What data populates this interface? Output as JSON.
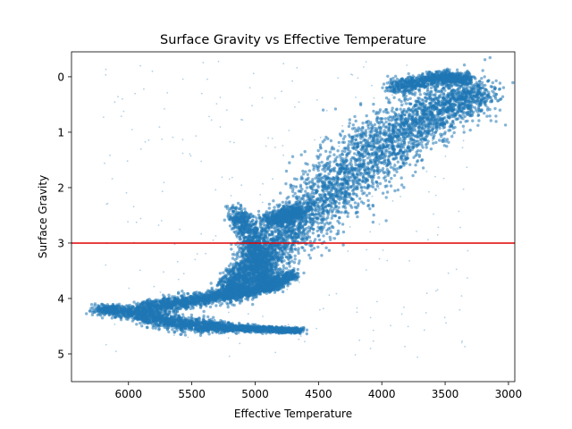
{
  "chart_data": {
    "type": "scatter",
    "title": "Surface Gravity vs Effective Temperature",
    "xlabel": "Effective Temperature",
    "ylabel": "Surface Gravity",
    "xlim": [
      6450,
      2950
    ],
    "ylim": [
      5.5,
      -0.45
    ],
    "x_inverted": true,
    "y_inverted": true,
    "xticks": [
      {
        "value": 6000,
        "label": "6000"
      },
      {
        "value": 5500,
        "label": "5500"
      },
      {
        "value": 5000,
        "label": "5000"
      },
      {
        "value": 4500,
        "label": "4500"
      },
      {
        "value": 4000,
        "label": "4000"
      },
      {
        "value": 3500,
        "label": "3500"
      },
      {
        "value": 3000,
        "label": "3000"
      }
    ],
    "yticks": [
      {
        "value": 0,
        "label": "0"
      },
      {
        "value": 1,
        "label": "1"
      },
      {
        "value": 2,
        "label": "2"
      },
      {
        "value": 3,
        "label": "3"
      },
      {
        "value": 4,
        "label": "4"
      },
      {
        "value": 5,
        "label": "5"
      }
    ],
    "reference_line": {
      "orientation": "horizontal",
      "y": 3.0,
      "color": "#e00000"
    },
    "point_color": "#1f77b4",
    "grid": false,
    "density_regions": [
      {
        "name": "giant branch",
        "x_range": [
          5250,
          3250
        ],
        "y_range": [
          4.0,
          -0.25
        ]
      },
      {
        "name": "subgiant",
        "x_range": [
          5300,
          4600
        ],
        "y_range": [
          3.9,
          2.3
        ]
      },
      {
        "name": "main sequence",
        "x_range": [
          6300,
          4600
        ],
        "y_range": [
          4.65,
          3.9
        ]
      }
    ],
    "backbones": [
      {
        "name": "giant-branch",
        "points": [
          [
            3200,
            0.3
          ],
          [
            3350,
            0.4
          ],
          [
            3500,
            0.55
          ],
          [
            3650,
            0.75
          ],
          [
            3800,
            0.95
          ],
          [
            3950,
            1.2
          ],
          [
            4100,
            1.45
          ],
          [
            4250,
            1.75
          ],
          [
            4400,
            2.05
          ],
          [
            4550,
            2.4
          ],
          [
            4700,
            2.75
          ],
          [
            4850,
            3.05
          ],
          [
            4950,
            3.3
          ],
          [
            5050,
            3.55
          ],
          [
            5150,
            3.7
          ],
          [
            5250,
            3.85
          ]
        ],
        "spreads": [
          [
            150,
            0.25
          ],
          [
            160,
            0.3
          ],
          [
            170,
            0.35
          ],
          [
            180,
            0.4
          ],
          [
            190,
            0.45
          ],
          [
            200,
            0.5
          ],
          [
            200,
            0.55
          ],
          [
            190,
            0.55
          ],
          [
            170,
            0.55
          ],
          [
            150,
            0.55
          ],
          [
            130,
            0.5
          ],
          [
            110,
            0.45
          ],
          [
            100,
            0.4
          ],
          [
            90,
            0.3
          ],
          [
            80,
            0.25
          ],
          [
            70,
            0.2
          ]
        ]
      },
      {
        "name": "main-sequence",
        "points": [
          [
            6250,
            4.2
          ],
          [
            6000,
            4.25
          ],
          [
            5800,
            4.35
          ],
          [
            5600,
            4.45
          ],
          [
            5400,
            4.5
          ],
          [
            5200,
            4.53
          ],
          [
            5000,
            4.55
          ],
          [
            4800,
            4.57
          ],
          [
            4650,
            4.58
          ]
        ],
        "spreads": [
          [
            60,
            0.08
          ],
          [
            70,
            0.1
          ],
          [
            70,
            0.12
          ],
          [
            70,
            0.12
          ],
          [
            70,
            0.1
          ],
          [
            70,
            0.06
          ],
          [
            70,
            0.05
          ],
          [
            60,
            0.04
          ],
          [
            40,
            0.04
          ]
        ]
      },
      {
        "name": "turnoff-hook",
        "points": [
          [
            5900,
            4.2
          ],
          [
            5700,
            4.1
          ],
          [
            5500,
            4.05
          ],
          [
            5300,
            3.95
          ],
          [
            5150,
            3.9
          ],
          [
            5000,
            3.85
          ],
          [
            4850,
            3.75
          ],
          [
            4700,
            3.55
          ]
        ],
        "spreads": [
          [
            90,
            0.12
          ],
          [
            90,
            0.12
          ],
          [
            90,
            0.1
          ],
          [
            80,
            0.08
          ],
          [
            70,
            0.08
          ],
          [
            60,
            0.08
          ],
          [
            60,
            0.08
          ],
          [
            60,
            0.08
          ]
        ]
      },
      {
        "name": "subgiant",
        "points": [
          [
            5150,
            2.45
          ],
          [
            5050,
            2.8
          ],
          [
            5000,
            3.15
          ],
          [
            4950,
            3.5
          ],
          [
            4900,
            3.75
          ]
        ],
        "spreads": [
          [
            60,
            0.15
          ],
          [
            90,
            0.2
          ],
          [
            110,
            0.2
          ],
          [
            110,
            0.15
          ],
          [
            90,
            0.1
          ]
        ]
      },
      {
        "name": "upper-giants",
        "points": [
          [
            3900,
            0.2
          ],
          [
            3700,
            0.1
          ],
          [
            3500,
            0.0
          ],
          [
            3350,
            0.05
          ]
        ],
        "spreads": [
          [
            120,
            0.12
          ],
          [
            120,
            0.1
          ],
          [
            110,
            0.1
          ],
          [
            90,
            0.1
          ]
        ]
      },
      {
        "name": "red-clump",
        "points": [
          [
            4900,
            2.6
          ],
          [
            4750,
            2.5
          ],
          [
            4650,
            2.45
          ]
        ],
        "spreads": [
          [
            90,
            0.12
          ],
          [
            80,
            0.12
          ],
          [
            70,
            0.12
          ]
        ]
      }
    ]
  }
}
